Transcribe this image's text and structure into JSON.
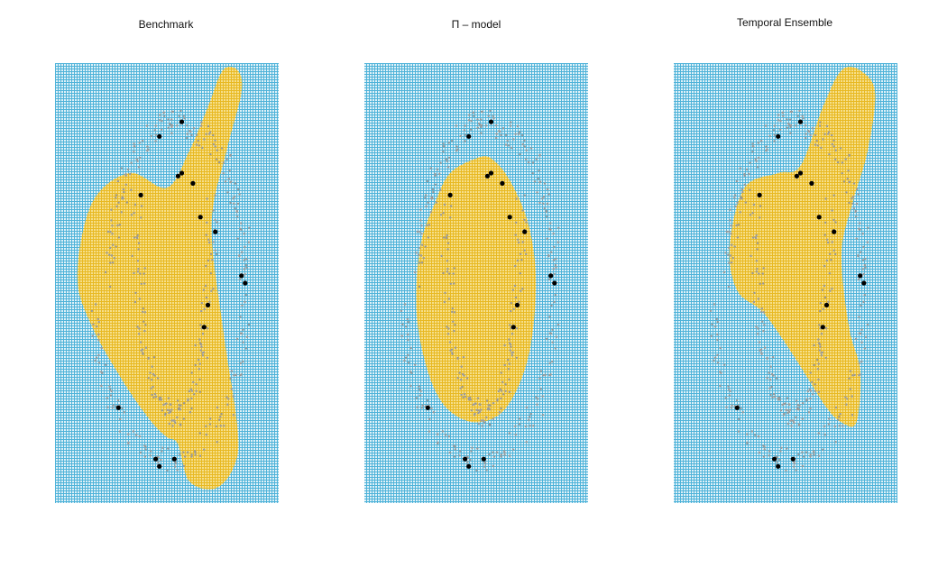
{
  "colors": {
    "background_region": "#4fb3d9",
    "positive_region": "#e8b923",
    "unlabeled_points": "#9a9a9a",
    "labeled_points": "#000000"
  },
  "chart_data": [
    {
      "type": "scatter",
      "title": "Benchmark",
      "xlim": [
        -1.5,
        1.5
      ],
      "ylim": [
        -1.5,
        1.5
      ],
      "grid": false,
      "decision_region": [
        [
          0.75,
          1.45
        ],
        [
          0.55,
          1.2
        ],
        [
          0.3,
          0.9
        ],
        [
          0.0,
          0.65
        ],
        [
          -0.5,
          0.75
        ],
        [
          -1.0,
          0.55
        ],
        [
          -1.2,
          0.05
        ],
        [
          -1.0,
          -0.3
        ],
        [
          -0.55,
          -0.7
        ],
        [
          -0.2,
          -0.95
        ],
        [
          0.0,
          -1.05
        ],
        [
          0.15,
          -1.1
        ],
        [
          0.3,
          -1.35
        ],
        [
          0.65,
          -1.4
        ],
        [
          0.9,
          -1.25
        ],
        [
          0.95,
          -1.0
        ],
        [
          0.75,
          -0.3
        ],
        [
          0.6,
          0.4
        ],
        [
          0.8,
          0.9
        ],
        [
          1.0,
          1.3
        ],
        [
          0.95,
          1.45
        ]
      ],
      "labeled_points": [
        [
          0.2,
          1.1
        ],
        [
          -0.1,
          1.0
        ],
        [
          0.2,
          0.75
        ],
        [
          0.15,
          0.73
        ],
        [
          0.35,
          0.68
        ],
        [
          -0.35,
          0.6
        ],
        [
          0.45,
          0.45
        ],
        [
          0.65,
          0.35
        ],
        [
          1.0,
          0.05
        ],
        [
          1.05,
          0.0
        ],
        [
          0.55,
          -0.15
        ],
        [
          0.5,
          -0.3
        ],
        [
          -0.65,
          -0.85
        ],
        [
          -0.15,
          -1.2
        ],
        [
          -0.1,
          -1.25
        ],
        [
          0.1,
          -1.2
        ]
      ]
    },
    {
      "type": "scatter",
      "title": "Π – model",
      "xlim": [
        -1.5,
        1.5
      ],
      "ylim": [
        -1.5,
        1.5
      ],
      "grid": false,
      "decision_region": [
        [
          0.0,
          0.85
        ],
        [
          -0.35,
          0.75
        ],
        [
          -0.55,
          0.55
        ],
        [
          -0.75,
          0.25
        ],
        [
          -0.8,
          -0.2
        ],
        [
          -0.65,
          -0.6
        ],
        [
          -0.4,
          -0.85
        ],
        [
          0.0,
          -0.95
        ],
        [
          0.4,
          -0.85
        ],
        [
          0.7,
          -0.5
        ],
        [
          0.8,
          0.0
        ],
        [
          0.7,
          0.4
        ],
        [
          0.45,
          0.7
        ],
        [
          0.2,
          0.85
        ]
      ],
      "labeled_points": [
        [
          0.2,
          1.1
        ],
        [
          -0.1,
          1.0
        ],
        [
          0.2,
          0.75
        ],
        [
          0.15,
          0.73
        ],
        [
          0.35,
          0.68
        ],
        [
          -0.35,
          0.6
        ],
        [
          0.45,
          0.45
        ],
        [
          0.65,
          0.35
        ],
        [
          1.0,
          0.05
        ],
        [
          1.05,
          0.0
        ],
        [
          0.55,
          -0.15
        ],
        [
          0.5,
          -0.3
        ],
        [
          -0.65,
          -0.85
        ],
        [
          -0.15,
          -1.2
        ],
        [
          -0.1,
          -1.25
        ],
        [
          0.1,
          -1.2
        ]
      ]
    },
    {
      "type": "scatter",
      "title": "Temporal Ensemble",
      "xlim": [
        -1.5,
        1.5
      ],
      "ylim": [
        -1.5,
        1.5
      ],
      "grid": false,
      "decision_region": [
        [
          0.75,
          1.45
        ],
        [
          0.5,
          1.2
        ],
        [
          0.2,
          0.8
        ],
        [
          -0.1,
          0.75
        ],
        [
          -0.55,
          0.65
        ],
        [
          -0.75,
          0.25
        ],
        [
          -0.65,
          -0.05
        ],
        [
          -0.3,
          -0.2
        ],
        [
          0.05,
          -0.45
        ],
        [
          0.3,
          -0.65
        ],
        [
          0.55,
          -0.85
        ],
        [
          0.75,
          -0.95
        ],
        [
          0.95,
          -0.95
        ],
        [
          1.0,
          -0.6
        ],
        [
          0.85,
          -0.3
        ],
        [
          0.75,
          0.2
        ],
        [
          0.9,
          0.55
        ],
        [
          1.1,
          0.9
        ],
        [
          1.2,
          1.3
        ],
        [
          1.0,
          1.45
        ]
      ],
      "labeled_points": [
        [
          0.2,
          1.1
        ],
        [
          -0.1,
          1.0
        ],
        [
          0.2,
          0.75
        ],
        [
          0.15,
          0.73
        ],
        [
          0.35,
          0.68
        ],
        [
          -0.35,
          0.6
        ],
        [
          0.45,
          0.45
        ],
        [
          0.65,
          0.35
        ],
        [
          1.0,
          0.05
        ],
        [
          1.05,
          0.0
        ],
        [
          0.55,
          -0.15
        ],
        [
          0.5,
          -0.3
        ],
        [
          -0.65,
          -0.85
        ],
        [
          -0.15,
          -1.2
        ],
        [
          -0.1,
          -1.25
        ],
        [
          0.1,
          -1.2
        ]
      ]
    }
  ]
}
